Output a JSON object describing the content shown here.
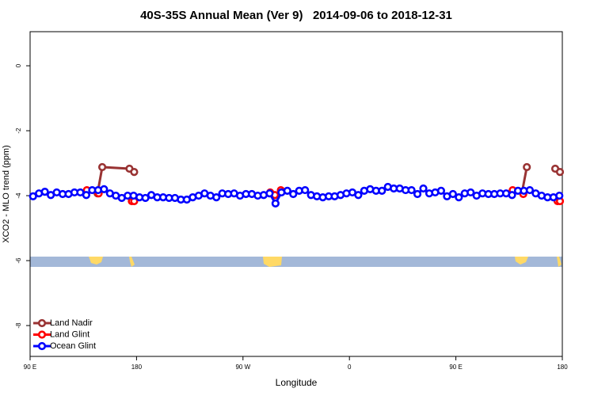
{
  "chart_data": {
    "type": "line",
    "title": "40S-35S Annual Mean (Ver 9)   2014-09-06 to 2018-12-31",
    "x_label": "Longitude",
    "y_label": "XCO2 - MLO trend (ppm)",
    "xlim": [
      90,
      540
    ],
    "xticks": [
      {
        "value": 90,
        "label": "90 E"
      },
      180,
      {
        "value": 270,
        "label": "90 W"
      },
      {
        "value": 360,
        "label": "0"
      },
      {
        "value": 450,
        "label": "90 E"
      },
      {
        "value": 540,
        "label": "180"
      }
    ],
    "ylim": [
      -8.95,
      1.05
    ],
    "yticks": [
      0,
      -2,
      -4,
      -6,
      -8
    ],
    "legend": "bottom-left",
    "series": [
      {
        "name": "Land Nadir",
        "color": "#993333",
        "x": [
          147,
          151,
          174,
          178,
          null,
          506,
          510,
          null,
          534,
          538
        ],
        "values": [
          -3.93,
          -3.12,
          -3.17,
          -3.27,
          null,
          -3.88,
          -3.12,
          null,
          -3.17,
          -3.27
        ]
      },
      {
        "name": "Land Glint",
        "color": "#ff0000",
        "x": [
          138,
          148,
          null,
          176,
          178,
          null,
          293,
          297,
          302,
          null,
          498,
          507,
          null,
          536,
          538
        ],
        "values": [
          -3.83,
          -3.93,
          null,
          -4.17,
          -4.17,
          null,
          -3.9,
          -3.98,
          -3.83,
          null,
          -3.83,
          -3.95,
          null,
          -4.17,
          -4.17
        ]
      },
      {
        "name": "Ocean Glint",
        "color": "#0000ff",
        "x": [
          92.5,
          97.5,
          102.5,
          107.5,
          112.5,
          117.5,
          122.5,
          127.5,
          132.5,
          137.5,
          142.5,
          147.5,
          152.5,
          157.5,
          162.5,
          167.5,
          172.5,
          177.5,
          182.5,
          187.5,
          192.5,
          197.5,
          202.5,
          207.5,
          212.5,
          217.5,
          222.5,
          227.5,
          232.5,
          237.5,
          242.5,
          247.5,
          252.5,
          257.5,
          262.5,
          267.5,
          272.5,
          277.5,
          282.5,
          287.5,
          292.5,
          297.5,
          302.5,
          307.5,
          312.5,
          317.5,
          322.5,
          327.5,
          332.5,
          337.5,
          342.5,
          347.5,
          352.5,
          357.5,
          362.5,
          367.5,
          372.5,
          377.5,
          382.5,
          387.5,
          392.5,
          397.5,
          402.5,
          407.5,
          412.5,
          417.5,
          422.5,
          427.5,
          432.5,
          437.5,
          442.5,
          447.5,
          452.5,
          457.5,
          462.5,
          467.5,
          472.5,
          477.5,
          482.5,
          487.5,
          492.5,
          497.5,
          502.5,
          507.5,
          512.5,
          517.5,
          522.5,
          527.5,
          532.5,
          537.5
        ],
        "values": [
          -4.02,
          -3.93,
          -3.88,
          -3.98,
          -3.9,
          -3.95,
          -3.95,
          -3.9,
          -3.9,
          -3.98,
          -3.83,
          -3.83,
          -3.8,
          -3.93,
          -4.0,
          -4.07,
          -4.0,
          -4.0,
          -4.05,
          -4.07,
          -3.98,
          -4.05,
          -4.05,
          -4.07,
          -4.07,
          -4.12,
          -4.12,
          -4.05,
          -4.0,
          -3.93,
          -4.0,
          -4.05,
          -3.93,
          -3.95,
          -3.93,
          -4.0,
          -3.95,
          -3.95,
          -4.0,
          -3.98,
          -3.93,
          -4.24,
          -3.9,
          -3.85,
          -3.95,
          -3.85,
          -3.83,
          -3.98,
          -4.02,
          -4.05,
          -4.02,
          -4.02,
          -3.98,
          -3.93,
          -3.9,
          -3.98,
          -3.85,
          -3.8,
          -3.85,
          -3.85,
          -3.73,
          -3.78,
          -3.78,
          -3.83,
          -3.83,
          -3.95,
          -3.78,
          -3.93,
          -3.9,
          -3.85,
          -4.02,
          -3.95,
          -4.05,
          -3.93,
          -3.9,
          -4.0,
          -3.93,
          -3.95,
          -3.95,
          -3.93,
          -3.93,
          -3.98,
          -3.85,
          -3.85,
          -3.83,
          -3.93,
          -4.0,
          -4.05,
          -4.05,
          -4.0
        ]
      }
    ]
  }
}
